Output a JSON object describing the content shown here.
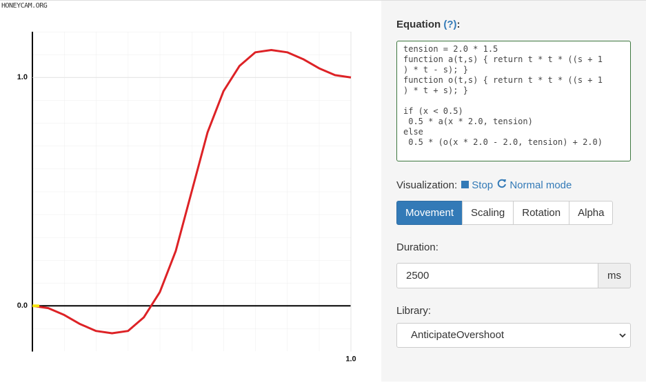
{
  "watermark": "HONEYCAM.ORG",
  "chart_data": {
    "type": "line",
    "x": [
      0,
      0.05,
      0.1,
      0.15,
      0.2,
      0.25,
      0.3,
      0.35,
      0.4,
      0.45,
      0.5,
      0.55,
      0.6,
      0.65,
      0.7,
      0.75,
      0.8,
      0.85,
      0.9,
      0.95,
      1
    ],
    "series": [
      {
        "color": "#dd2226",
        "values": [
          0,
          -0.01,
          -0.04,
          -0.08,
          -0.11,
          -0.12,
          -0.11,
          -0.05,
          0.06,
          0.24,
          0.5,
          0.76,
          0.94,
          1.05,
          1.11,
          1.12,
          1.11,
          1.08,
          1.04,
          1.01,
          1
        ]
      }
    ],
    "xlim": [
      0,
      1.0
    ],
    "ylim": [
      -0.2,
      1.2
    ],
    "xticks": [
      {
        "value": 1,
        "label": "1.0"
      }
    ],
    "yticks": [
      {
        "value": 0,
        "label": "0.0"
      },
      {
        "value": 1,
        "label": "1.0"
      }
    ]
  },
  "equation": {
    "label": [
      "Equation",
      "(?)",
      ":"
    ],
    "code": [
      [
        "tension = 2.0 * 1.5",
        "function a(t,s) { return t * t * ((s + 1",
        ") * t - s); }",
        "function o(t,s) { return t * t * ((s + 1",
        ") * t + s); }"
      ],
      [
        "if (x < 0.5)",
        " 0.5 * a(x * 2.0, tension)",
        "else",
        " 0.5 * (o(x * 2.0 - 2.0, tension) + 2.0)"
      ]
    ]
  },
  "visualization": {
    "label": "Visualization:",
    "stop": "Stop",
    "mode": "Normal mode",
    "tabs": [
      "Movement",
      "Scaling",
      "Rotation",
      "Alpha"
    ]
  },
  "duration": {
    "label": "Duration:",
    "value": "2500",
    "unit": "ms"
  },
  "library": {
    "label": "Library:",
    "value": "AnticipateOvershoot"
  }
}
